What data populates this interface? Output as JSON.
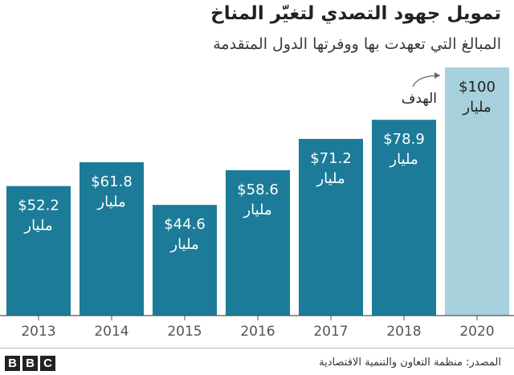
{
  "chart_data": {
    "type": "bar",
    "title": "تمويل جهود التصدي لتغيّر المناخ",
    "subtitle": "المبالغ التي تعهدت بها ووفرتها الدول المتقدمة",
    "categories": [
      "2013",
      "2014",
      "2015",
      "2016",
      "2017",
      "2018",
      "2020"
    ],
    "values": [
      52.2,
      61.8,
      44.6,
      58.6,
      71.2,
      78.9,
      100
    ],
    "value_labels": [
      "$52.2",
      "$61.8",
      "$44.6",
      "$58.6",
      "$71.2",
      "$78.9",
      "$100"
    ],
    "unit_label": "مليار",
    "target_category": "2020",
    "target_annotation": "الهدف",
    "ylim": [
      0,
      100
    ],
    "grid": false,
    "colors": {
      "bar": "#1b7b98",
      "target_bar": "#a6d0dc",
      "axis": "#555555"
    }
  },
  "footer": {
    "logo_letters": [
      "B",
      "B",
      "C"
    ],
    "source": "المصدر: منظمة التعاون والتنمية الاقتصادية"
  }
}
